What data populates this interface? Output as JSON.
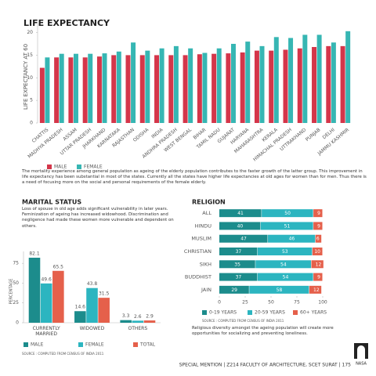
{
  "chart_data": [
    {
      "type": "bar",
      "title": "LIFE EXPECTANCY",
      "y_label": "LIFE EXPECTANCY AT 60",
      "categories": [
        "CHATTIS",
        "MADHYA PRADESH",
        "ASSAM",
        "UTTAR PRADESH",
        "JHARKHAND",
        "KARNATAKA",
        "RAJASTHAN",
        "ODISHA",
        "INDIA",
        "ANDHRA PRADESH",
        "WEST BENGAL",
        "BIHAR",
        "TAMIL NADU",
        "GUJARAT",
        "HARYANA",
        "MAHARASHTRA",
        "KERALA",
        "HIMACHAL PRADESH",
        "UTTRAKHAND",
        "PUNJAB",
        "DELHI",
        "JAMMU KASHMIR"
      ],
      "series": [
        {
          "name": "MALE",
          "color": "#d4364a",
          "values": [
            12.2,
            14.5,
            14.5,
            14.5,
            14.7,
            15,
            15,
            15,
            15,
            15,
            15,
            15.2,
            15.3,
            15.4,
            15.6,
            16,
            16,
            16.2,
            16.5,
            16.8,
            17,
            17
          ]
        },
        {
          "name": "FEMALE",
          "color": "#36b6b3",
          "values": [
            14.5,
            15.3,
            15.3,
            15.3,
            15.4,
            15.8,
            17.8,
            16,
            16.5,
            17,
            16.5,
            15.5,
            16.5,
            17.5,
            18,
            17,
            19,
            18.8,
            19.5,
            19.5,
            17.8,
            20.3
          ]
        }
      ],
      "ylim": [
        0,
        22
      ],
      "yticks": [
        0,
        5,
        10,
        15,
        20
      ],
      "caption": "The mortality experience among general population as ageing of the elderly population contributes to the faster growth of the latter group. This improvement in life expectancy has been substantial in most of the states. Currently all the states have higher life expectancies at old ages for women than for men. Thus there is a need of focusing more on the social and personal requirements of the female elderly."
    },
    {
      "type": "bar",
      "title": "MARITAL STATUS",
      "y_label": "PERCENTAGE",
      "caption": "Loss of spouse in old age adds significant vulnerability in later years. Feminization of ageing has increased widowhood. Discrimination and negligence had made these women more vulnerable and dependent on others.",
      "categories": [
        "CURRENTLY MARRIED",
        "WIDOWED",
        "OTHERS"
      ],
      "series": [
        {
          "name": "MALE",
          "color": "#1c8c8c",
          "values": [
            82.1,
            14.6,
            3.3
          ]
        },
        {
          "name": "FEMALE",
          "color": "#2cb5c0",
          "values": [
            49.6,
            43.8,
            2.6
          ]
        },
        {
          "name": "TOTAL",
          "color": "#e5604b",
          "values": [
            65.5,
            31.5,
            2.9
          ]
        }
      ],
      "ylim": [
        0,
        90
      ],
      "yticks": [
        0,
        25,
        50,
        75
      ],
      "source": "SOURCE : COMPUTED FROM CENSUS OF INDIA 2011"
    },
    {
      "type": "stacked-bar-horizontal",
      "title": "RELIGION",
      "categories": [
        "ALL",
        "HINDU",
        "MUSLIM",
        "CHRISTIAN",
        "SIKH",
        "BUDDHIST",
        "JAIN"
      ],
      "series": [
        {
          "name": "0-19 YEARS",
          "color": "#1c8c8c",
          "values": [
            41,
            40,
            47,
            37,
            35,
            37,
            29
          ]
        },
        {
          "name": "20-59 YEARS",
          "color": "#2cb5c0",
          "values": [
            50,
            51,
            46,
            53,
            54,
            54,
            58
          ]
        },
        {
          "name": "60+ YEARS",
          "color": "#e5604b",
          "values": [
            9,
            9,
            6,
            10,
            12,
            9,
            12
          ]
        }
      ],
      "xlim": [
        0,
        100
      ],
      "xticks": [
        0,
        25,
        50,
        75,
        100
      ],
      "source": "SOURCE : COMPUTED FROM CENSUS OF INDIA 2011",
      "caption": "Religious diversity amongst the ageing population will create more opportunities for socializing and preventing loneliness."
    }
  ],
  "footer": "SPECIAL MENTION | Z214 FACULTY OF ARCHITECTURE, SCET SURAT | 175",
  "logo": "NASA"
}
